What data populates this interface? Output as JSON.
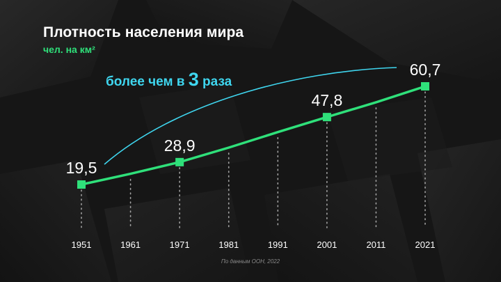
{
  "title": "Плотность населения мира",
  "subtitle": "чел. на км²",
  "annotation": {
    "prefix": "более чем в ",
    "number": "3",
    "suffix": " раза"
  },
  "source": "По данным ООН, 2022",
  "colors": {
    "line": "#2fe07a",
    "marker": "#2fe07a",
    "arrow": "#3fd6ef",
    "text": "#ffffff",
    "dotted": "#bbbbbb"
  },
  "chart_data": {
    "type": "line",
    "categories": [
      "1951",
      "1961",
      "1971",
      "1981",
      "1991",
      "2001",
      "2011",
      "2021"
    ],
    "values": [
      19.5,
      24,
      28.9,
      35,
      41.5,
      47.8,
      54,
      60.7
    ],
    "data_labels": [
      {
        "category": "1951",
        "text": "19,5"
      },
      {
        "category": "1971",
        "text": "28,9"
      },
      {
        "category": "2001",
        "text": "47,8"
      },
      {
        "category": "2021",
        "text": "60,7"
      }
    ],
    "title": "Плотность населения мира",
    "ylabel": "чел. на км²",
    "ylim": [
      0,
      70
    ],
    "grid": false
  }
}
